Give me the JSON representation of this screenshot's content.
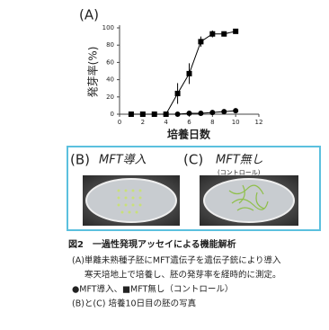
{
  "chart_data": {
    "type": "line",
    "title": "(A)",
    "xlabel": "培養日数",
    "ylabel": "発芽率(%)",
    "x": [
      1,
      2,
      3,
      4,
      5,
      6,
      7,
      8,
      9,
      10
    ],
    "series": [
      {
        "color": "#000000",
        "marker": "circle",
        "values": [
          0,
          0,
          0,
          0,
          0,
          1,
          1,
          2,
          3,
          4
        ]
      },
      {
        "color": "#000000",
        "marker": "square",
        "values": [
          0,
          0,
          0,
          0,
          24,
          47,
          84,
          93,
          93,
          96
        ],
        "errors": [
          null,
          null,
          null,
          null,
          12,
          12,
          6,
          4,
          3,
          2
        ]
      }
    ],
    "xlim": [
      0,
      12
    ],
    "xticks": [
      0,
      2,
      4,
      6,
      8,
      10,
      12
    ],
    "ylim": [
      0,
      100
    ],
    "yticks": [
      0,
      20,
      40,
      60,
      80,
      100
    ]
  },
  "panels": [
    {
      "label": "(B)",
      "title": "MFT導入"
    },
    {
      "label": "(C)",
      "title": "MFT無し",
      "subtitle": "(コントロール)"
    }
  ],
  "caption": {
    "title": "図2　一過性発現アッセイによる機能解析",
    "lines": [
      "(A)単離未熟種子胚にMFT遺伝子を遺伝子銃により導入",
      "寒天培地上で培養し、胚の発芽率を経時的に測定。",
      "●MFT導入、■MFT無し（コントロール）",
      "(B)と(C) 培養10日目の胚の写真"
    ]
  }
}
